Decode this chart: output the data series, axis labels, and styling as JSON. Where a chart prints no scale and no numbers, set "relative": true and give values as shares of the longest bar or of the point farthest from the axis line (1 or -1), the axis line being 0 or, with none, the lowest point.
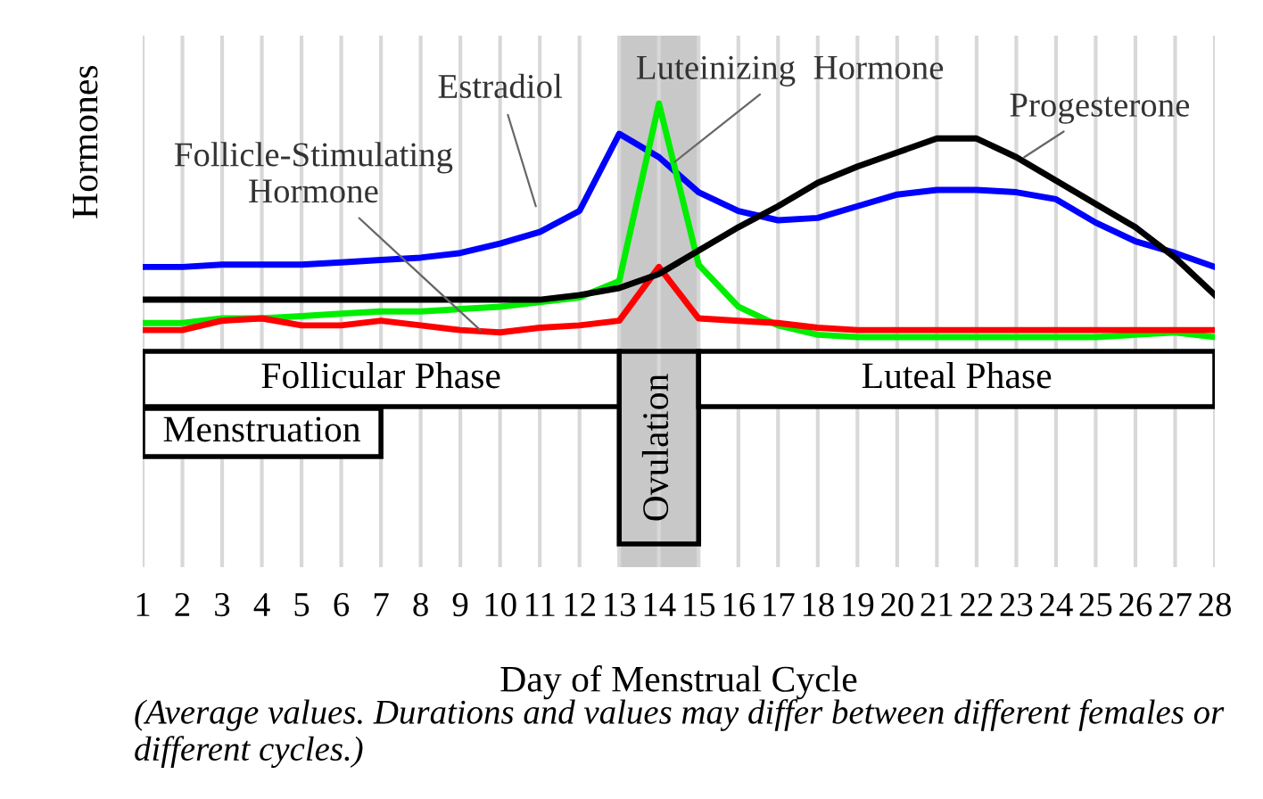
{
  "chart_data": {
    "type": "line",
    "relative": true,
    "xlabel": "Day of Menstrual Cycle",
    "ylabel": "Hormones",
    "x": [
      1,
      2,
      3,
      4,
      5,
      6,
      7,
      8,
      9,
      10,
      11,
      12,
      13,
      14,
      15,
      16,
      17,
      18,
      19,
      20,
      21,
      22,
      23,
      24,
      25,
      26,
      27,
      28
    ],
    "xlim": [
      1,
      28
    ],
    "xticks": [
      1,
      2,
      3,
      4,
      5,
      6,
      7,
      8,
      9,
      10,
      11,
      12,
      13,
      14,
      15,
      16,
      17,
      18,
      19,
      20,
      21,
      22,
      23,
      24,
      25,
      26,
      27,
      28
    ],
    "grid": "x",
    "legend": false,
    "series": [
      {
        "name": "Estradiol",
        "color": "#0000ff",
        "values": [
          0.3,
          0.3,
          0.31,
          0.31,
          0.31,
          0.32,
          0.33,
          0.34,
          0.36,
          0.4,
          0.45,
          0.54,
          0.87,
          0.77,
          0.62,
          0.54,
          0.5,
          0.51,
          0.56,
          0.61,
          0.63,
          0.63,
          0.62,
          0.59,
          0.49,
          0.41,
          0.36,
          0.3
        ]
      },
      {
        "name": "Luteinizing  Hormone",
        "color": "#00ee00",
        "values": [
          0.06,
          0.06,
          0.08,
          0.08,
          0.09,
          0.1,
          0.11,
          0.11,
          0.12,
          0.13,
          0.15,
          0.17,
          0.24,
          1,
          0.31,
          0.13,
          0.05,
          0.01,
          0,
          0,
          0,
          0,
          0,
          0,
          0,
          0.01,
          0.02,
          0
        ]
      },
      {
        "name": "Follicle-Stimulating\nHormone",
        "color": "#ff0000",
        "values": [
          0.03,
          0.03,
          0.07,
          0.08,
          0.05,
          0.05,
          0.07,
          0.05,
          0.03,
          0.02,
          0.04,
          0.05,
          0.07,
          0.3,
          0.08,
          0.07,
          0.06,
          0.04,
          0.03,
          0.03,
          0.03,
          0.03,
          0.03,
          0.03,
          0.03,
          0.03,
          0.03,
          0.03
        ]
      },
      {
        "name": "Progesterone",
        "color": "#000000",
        "values": [
          0.16,
          0.16,
          0.16,
          0.16,
          0.16,
          0.16,
          0.16,
          0.16,
          0.16,
          0.16,
          0.16,
          0.18,
          0.21,
          0.27,
          0.37,
          0.47,
          0.56,
          0.66,
          0.73,
          0.79,
          0.85,
          0.85,
          0.77,
          0.67,
          0.57,
          0.47,
          0.34,
          0.18
        ]
      }
    ],
    "bands": [
      {
        "axis": "x",
        "from": 13,
        "to": 15,
        "label": "Ovulation",
        "color": "#c8c8c8"
      }
    ],
    "annotations": [
      "Follicular Phase",
      "Luteal Phase",
      "Menstruation",
      "(Average values. Durations and values may differ between different females or different cycles.)"
    ]
  }
}
